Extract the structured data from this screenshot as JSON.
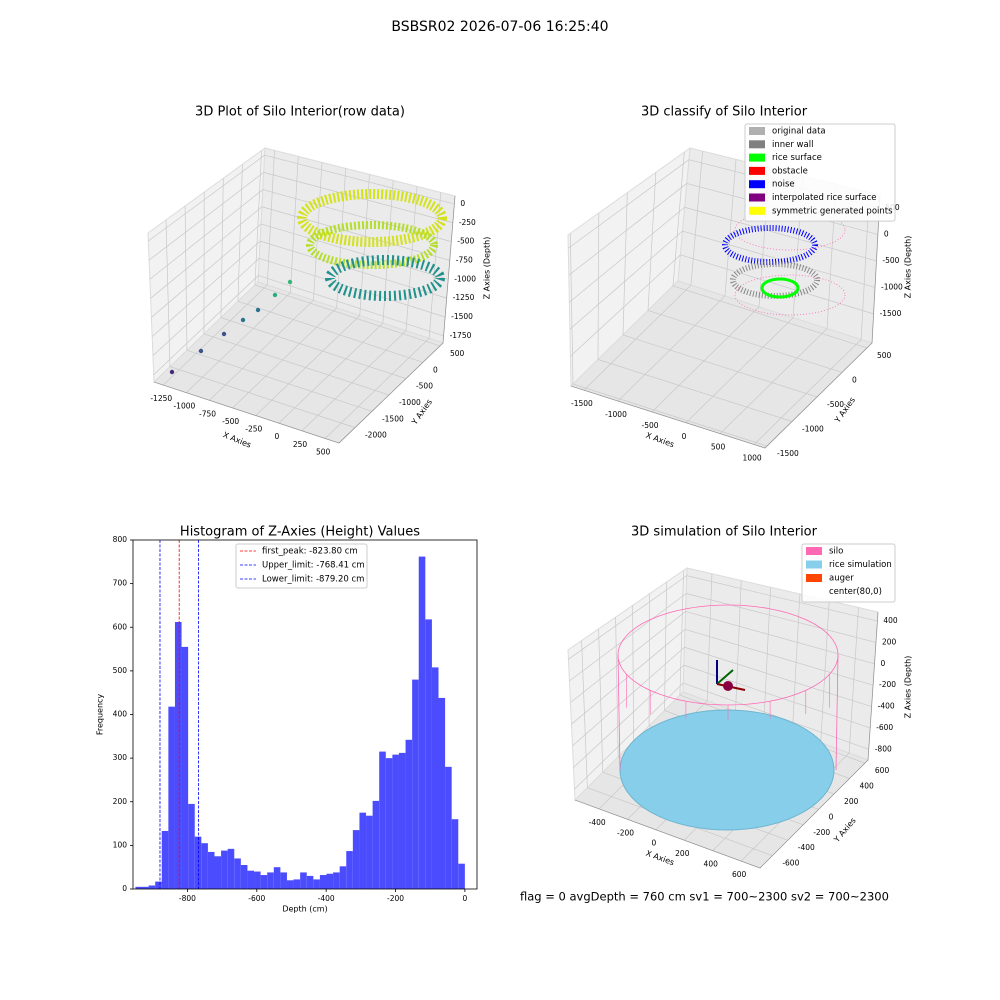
{
  "title": "BSBSR02 2026-07-06 16:25:40",
  "status_text": "flag = 0     avgDepth = 760 cm  sv1 = 700~2300  sv2 = 700~2300",
  "chart_data": [
    {
      "type": "scatter3d",
      "title": "3D Plot of Silo Interior(row data)",
      "xlabel": "X Axies",
      "ylabel": "Y Axies",
      "zlabel": "Z Axies (Depth)",
      "xlim": [
        -1350,
        650
      ],
      "ylim": [
        -2470,
        590
      ],
      "zlim": [
        -1845,
        105
      ],
      "xticks": [
        -1250,
        -1000,
        -750,
        -500,
        -250,
        0,
        250,
        500
      ],
      "yticks": [
        -2000,
        -1500,
        -1000,
        -500,
        0,
        500
      ],
      "zticks": [
        0,
        -250,
        -500,
        -750,
        -1000,
        -1250,
        -1500,
        -1750
      ]
    },
    {
      "type": "scatter3d",
      "title": "3D classify of Silo Interior",
      "xlabel": "X Axies",
      "ylabel": "Y Axies",
      "zlabel": "Z Axies (Depth)",
      "xlim": [
        -1690,
        1160
      ],
      "ylim": [
        -1540,
        600
      ],
      "zlim": [
        -2050,
        745
      ],
      "xticks": [
        -1500,
        -1000,
        -500,
        0,
        500,
        1000
      ],
      "yticks": [
        -1500,
        -1000,
        -500,
        0,
        500
      ],
      "zticks": [
        500,
        0,
        -500,
        -1000,
        -1500
      ],
      "legend": [
        {
          "name": "original data",
          "color": "#b0b0b0"
        },
        {
          "name": "inner wall",
          "color": "#808080"
        },
        {
          "name": "rice surface",
          "color": "#00ff00"
        },
        {
          "name": "obstacle",
          "color": "#ff0000"
        },
        {
          "name": "noise",
          "color": "#0000ff"
        },
        {
          "name": "interpolated rice surface",
          "color": "#800080"
        },
        {
          "name": "symmetric generated points",
          "color": "#ffff00"
        }
      ]
    },
    {
      "type": "histogram",
      "title": "Histogram of Z-Axies (Height) Values",
      "xlabel": "Depth (cm)",
      "ylabel": "Frequency",
      "color": "#4c4cff",
      "bins": [
        -950,
        -931,
        -912,
        -893,
        -874,
        -855,
        -836,
        -817,
        -798,
        -779,
        -760,
        -741,
        -722,
        -703,
        -684,
        -665,
        -646,
        -627,
        -608,
        -589,
        -570,
        -551,
        -532,
        -513,
        -494,
        -475,
        -456,
        -437,
        -418,
        -399,
        -380,
        -361,
        -342,
        -323,
        -304,
        -285,
        -266,
        -247,
        -228,
        -209,
        -190,
        -171,
        -152,
        -133,
        -114,
        -95,
        -76,
        -57,
        -38,
        -19,
        0
      ],
      "counts": [
        5,
        5,
        8,
        17,
        133,
        418,
        612,
        555,
        195,
        120,
        105,
        85,
        75,
        88,
        92,
        70,
        55,
        42,
        40,
        32,
        38,
        50,
        38,
        20,
        22,
        38,
        30,
        22,
        32,
        35,
        38,
        52,
        87,
        135,
        175,
        168,
        202,
        315,
        300,
        308,
        312,
        342,
        480,
        762,
        618,
        508,
        438,
        280,
        160,
        58
      ],
      "xlim": [
        -957,
        35
      ],
      "ylim": [
        0,
        800
      ],
      "xticks": [
        -800,
        -600,
        -400,
        -200,
        0
      ],
      "yticks": [
        0,
        100,
        200,
        300,
        400,
        500,
        600,
        700,
        800
      ],
      "vlines": [
        {
          "label": "first_peak: -823.80 cm",
          "value": -823.8,
          "color": "#ff0000"
        },
        {
          "label": "Upper_limit: -768.41 cm",
          "value": -768.41,
          "color": "#0000ff"
        },
        {
          "label": "Lower_limit: -879.20 cm",
          "value": -879.2,
          "color": "#0000ff"
        }
      ]
    },
    {
      "type": "scatter3d",
      "title": "3D simulation of Silo Interior",
      "xlabel": "X Axies",
      "ylabel": "Y Axies",
      "zlabel": "Z Axies (Depth)",
      "xlim": [
        -570,
        733
      ],
      "ylim": [
        -760,
        640
      ],
      "zlim": [
        -900,
        485
      ],
      "xticks": [
        -400,
        -200,
        0,
        200,
        400,
        600
      ],
      "yticks": [
        -600,
        -400,
        -200,
        0,
        200,
        400,
        600
      ],
      "zticks": [
        400,
        200,
        0,
        -200,
        -400,
        -600,
        -800
      ],
      "legend": [
        {
          "name": "silo",
          "color": "#ff69b4"
        },
        {
          "name": "rice simulation",
          "color": "#87ceeb"
        },
        {
          "name": "auger",
          "color": "#ff4500"
        },
        {
          "name": "center(80,0)",
          "color": "#ffffff"
        }
      ]
    }
  ]
}
